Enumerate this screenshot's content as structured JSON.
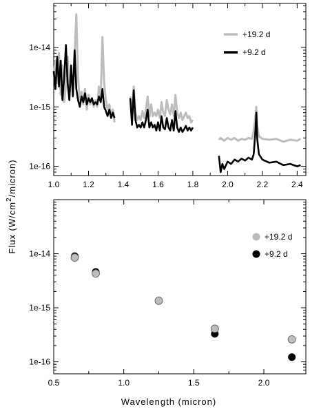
{
  "figure": {
    "ylabel": "Flux (W/cm",
    "ylabel_sup": "2",
    "ylabel_tail": "/micron)",
    "xlabel": "Wavelength (micron)"
  },
  "chart_data": [
    {
      "type": "line",
      "ylog": true,
      "xlim": [
        1.0,
        2.45
      ],
      "ylim": [
        7e-17,
        5.5e-14
      ],
      "xticks": [
        1.0,
        1.2,
        1.4,
        1.6,
        1.8,
        2.0,
        2.2,
        2.4
      ],
      "xtick_labels": [
        "1.0",
        "1.2",
        "1.4",
        "1.6",
        "1.8",
        "2.0",
        "2.2",
        "2.4"
      ],
      "yticks": [
        1e-16,
        1e-15,
        1e-14
      ],
      "ytick_labels": [
        "1e-16",
        "1e-15",
        "1e-14"
      ],
      "legend_position": "top-right",
      "series": [
        {
          "name": "+19.2 d",
          "color": "#bdbdbd",
          "segments": [
            [
              [
                1.0,
                3.5e-15
              ],
              [
                1.01,
                6e-15
              ],
              [
                1.02,
                2.5e-15
              ],
              [
                1.03,
                8e-15
              ],
              [
                1.04,
                1.6e-15
              ],
              [
                1.05,
                5e-15
              ],
              [
                1.06,
                1.2e-15
              ],
              [
                1.07,
                2.2e-15
              ],
              [
                1.08,
                7e-15
              ],
              [
                1.09,
                1.5e-15
              ],
              [
                1.1,
                4.5e-15
              ],
              [
                1.11,
                1.6e-15
              ],
              [
                1.12,
                8e-15
              ],
              [
                1.13,
                3.6e-14
              ],
              [
                1.14,
                3e-15
              ],
              [
                1.15,
                1.3e-15
              ],
              [
                1.16,
                1.8e-15
              ],
              [
                1.17,
                1.1e-15
              ],
              [
                1.18,
                2e-15
              ],
              [
                1.19,
                9e-16
              ],
              [
                1.2,
                1.6e-15
              ],
              [
                1.21,
                1.1e-15
              ],
              [
                1.22,
                1.4e-15
              ],
              [
                1.23,
                1e-15
              ],
              [
                1.24,
                1.3e-15
              ],
              [
                1.25,
                1e-15
              ],
              [
                1.26,
                2.2e-15
              ],
              [
                1.27,
                1.4e-15
              ],
              [
                1.28,
                1.5e-14
              ],
              [
                1.29,
                2.5e-15
              ],
              [
                1.3,
                1.3e-15
              ],
              [
                1.31,
                9e-16
              ],
              [
                1.32,
                1.1e-15
              ],
              [
                1.33,
                7e-16
              ],
              [
                1.34,
                9e-16
              ],
              [
                1.35,
                5.5e-16
              ]
            ],
            [
              [
                1.44,
                1.5e-15
              ],
              [
                1.45,
                6.5e-16
              ],
              [
                1.46,
                2.2e-15
              ],
              [
                1.47,
                8e-16
              ],
              [
                1.48,
                6e-16
              ],
              [
                1.49,
                7e-16
              ],
              [
                1.5,
                6e-16
              ],
              [
                1.51,
                8.5e-16
              ],
              [
                1.52,
                6.5e-16
              ],
              [
                1.53,
                9e-16
              ],
              [
                1.54,
                1.5e-15
              ],
              [
                1.55,
                7e-16
              ],
              [
                1.56,
                1.1e-15
              ],
              [
                1.57,
                7e-16
              ],
              [
                1.58,
                8e-16
              ],
              [
                1.59,
                7e-16
              ],
              [
                1.6,
                9e-16
              ],
              [
                1.61,
                6.5e-16
              ],
              [
                1.62,
                1.2e-15
              ],
              [
                1.63,
                8e-16
              ],
              [
                1.64,
                7e-16
              ],
              [
                1.65,
                1.3e-15
              ],
              [
                1.66,
                9e-16
              ],
              [
                1.67,
                7.5e-16
              ],
              [
                1.68,
                1.1e-15
              ],
              [
                1.69,
                7e-16
              ],
              [
                1.7,
                1.6e-15
              ],
              [
                1.71,
                8e-16
              ],
              [
                1.72,
                6.5e-16
              ],
              [
                1.73,
                8e-16
              ],
              [
                1.74,
                6e-16
              ],
              [
                1.75,
                7e-16
              ],
              [
                1.76,
                8e-16
              ],
              [
                1.77,
                6.5e-16
              ],
              [
                1.78,
                7e-16
              ],
              [
                1.79,
                5.5e-16
              ],
              [
                1.8,
                6e-16
              ]
            ],
            [
              [
                1.95,
                2.8e-16
              ],
              [
                1.96,
                3e-16
              ],
              [
                1.98,
                2.7e-16
              ],
              [
                2.0,
                3e-16
              ],
              [
                2.02,
                2.8e-16
              ],
              [
                2.04,
                3e-16
              ],
              [
                2.06,
                2.7e-16
              ],
              [
                2.08,
                2.9e-16
              ],
              [
                2.1,
                2.8e-16
              ],
              [
                2.12,
                3e-16
              ],
              [
                2.14,
                2.9e-16
              ],
              [
                2.15,
                4e-16
              ],
              [
                2.16,
                7e-16
              ],
              [
                2.165,
                1e-15
              ],
              [
                2.17,
                5e-16
              ],
              [
                2.18,
                3.2e-16
              ],
              [
                2.2,
                2.9e-16
              ],
              [
                2.24,
                2.8e-16
              ],
              [
                2.28,
                2.9e-16
              ],
              [
                2.32,
                2.6e-16
              ],
              [
                2.36,
                2.8e-16
              ],
              [
                2.4,
                2.7e-16
              ],
              [
                2.42,
                2.9e-16
              ]
            ]
          ]
        },
        {
          "name": "+9.2 d",
          "color": "#000000",
          "segments": [
            [
              [
                1.0,
                4e-15
              ],
              [
                1.01,
                2e-15
              ],
              [
                1.02,
                7e-15
              ],
              [
                1.03,
                2.2e-15
              ],
              [
                1.04,
                6e-15
              ],
              [
                1.05,
                1.3e-15
              ],
              [
                1.06,
                3e-15
              ],
              [
                1.07,
                1.1e-14
              ],
              [
                1.08,
                2.5e-15
              ],
              [
                1.09,
                1.3e-15
              ],
              [
                1.1,
                5e-15
              ],
              [
                1.11,
                1.5e-15
              ],
              [
                1.12,
                9e-15
              ],
              [
                1.13,
                2e-15
              ],
              [
                1.14,
                1.3e-15
              ],
              [
                1.15,
                1e-15
              ],
              [
                1.16,
                1.5e-15
              ],
              [
                1.17,
                1.2e-15
              ],
              [
                1.18,
                1.7e-15
              ],
              [
                1.19,
                1.1e-15
              ],
              [
                1.2,
                1.4e-15
              ],
              [
                1.21,
                1.2e-15
              ],
              [
                1.22,
                1.4e-15
              ],
              [
                1.23,
                1.1e-15
              ],
              [
                1.24,
                1.2e-15
              ],
              [
                1.25,
                1.1e-15
              ],
              [
                1.26,
                1.5e-15
              ],
              [
                1.27,
                1.2e-15
              ],
              [
                1.28,
                2e-15
              ],
              [
                1.29,
                1e-15
              ],
              [
                1.3,
                8.5e-16
              ],
              [
                1.31,
                7e-16
              ],
              [
                1.32,
                9e-16
              ],
              [
                1.33,
                6.5e-16
              ],
              [
                1.34,
                8e-16
              ],
              [
                1.35,
                6.5e-16
              ]
            ],
            [
              [
                1.44,
                1.4e-15
              ],
              [
                1.45,
                5e-16
              ],
              [
                1.46,
                1.9e-15
              ],
              [
                1.47,
                6e-16
              ],
              [
                1.48,
                4.5e-16
              ],
              [
                1.49,
                5e-16
              ],
              [
                1.5,
                4.5e-16
              ],
              [
                1.51,
                5.5e-16
              ],
              [
                1.52,
                4.5e-16
              ],
              [
                1.53,
                6e-16
              ],
              [
                1.54,
                9e-16
              ],
              [
                1.55,
                4.5e-16
              ],
              [
                1.56,
                5.5e-16
              ],
              [
                1.57,
                4.5e-16
              ],
              [
                1.58,
                5e-16
              ],
              [
                1.59,
                4e-16
              ],
              [
                1.6,
                5.5e-16
              ],
              [
                1.61,
                4e-16
              ],
              [
                1.62,
                7e-16
              ],
              [
                1.63,
                4.5e-16
              ],
              [
                1.64,
                4.2e-16
              ],
              [
                1.65,
                6.5e-16
              ],
              [
                1.66,
                4.5e-16
              ],
              [
                1.67,
                4e-16
              ],
              [
                1.68,
                6e-16
              ],
              [
                1.69,
                4e-16
              ],
              [
                1.7,
                8.5e-16
              ],
              [
                1.71,
                4.5e-16
              ],
              [
                1.72,
                3.8e-16
              ],
              [
                1.73,
                4.5e-16
              ],
              [
                1.74,
                3.8e-16
              ],
              [
                1.75,
                4.2e-16
              ],
              [
                1.76,
                4.8e-16
              ],
              [
                1.77,
                4e-16
              ],
              [
                1.78,
                4.5e-16
              ],
              [
                1.79,
                4e-16
              ],
              [
                1.8,
                4.5e-16
              ]
            ],
            [
              [
                1.95,
                1.5e-16
              ],
              [
                1.96,
                8e-17
              ],
              [
                1.97,
                1.1e-16
              ],
              [
                1.98,
                9e-17
              ],
              [
                2.0,
                1.2e-16
              ],
              [
                2.02,
                1.1e-16
              ],
              [
                2.04,
                1.3e-16
              ],
              [
                2.06,
                1.2e-16
              ],
              [
                2.08,
                1.35e-16
              ],
              [
                2.1,
                1.25e-16
              ],
              [
                2.12,
                1.4e-16
              ],
              [
                2.14,
                1.3e-16
              ],
              [
                2.15,
                1.6e-16
              ],
              [
                2.16,
                4e-16
              ],
              [
                2.165,
                8e-16
              ],
              [
                2.17,
                3e-16
              ],
              [
                2.18,
                1.6e-16
              ],
              [
                2.2,
                1.3e-16
              ],
              [
                2.24,
                1.15e-16
              ],
              [
                2.28,
                1.2e-16
              ],
              [
                2.32,
                1.05e-16
              ],
              [
                2.36,
                1.1e-16
              ],
              [
                2.4,
                1e-16
              ],
              [
                2.42,
                1.05e-16
              ]
            ]
          ]
        }
      ]
    },
    {
      "type": "scatter",
      "ylog": true,
      "xlim": [
        0.5,
        2.3
      ],
      "ylim": [
        6e-17,
        1e-13
      ],
      "xticks": [
        0.5,
        1.0,
        1.5,
        2.0
      ],
      "xtick_labels": [
        "0.5",
        "1.0",
        "1.5",
        "2.0"
      ],
      "yticks": [
        1e-16,
        1e-15,
        1e-14
      ],
      "ytick_labels": [
        "1e-16",
        "1e-15",
        "1e-14"
      ],
      "legend_position": "top-right",
      "series": [
        {
          "name": "+9.2 d",
          "color": "#000000",
          "points": [
            [
              0.65,
              9e-15
            ],
            [
              0.8,
              4.6e-15
            ],
            [
              1.25,
              1.35e-15
            ],
            [
              1.65,
              3.3e-16
            ],
            [
              2.2,
              1.22e-16
            ]
          ]
        },
        {
          "name": "+19.2 d",
          "color": "#bdbdbd",
          "points": [
            [
              0.65,
              8.5e-15
            ],
            [
              0.8,
              4.3e-15
            ],
            [
              1.25,
              1.35e-15
            ],
            [
              1.65,
              4.1e-16
            ],
            [
              2.2,
              2.6e-16
            ]
          ]
        }
      ]
    }
  ]
}
